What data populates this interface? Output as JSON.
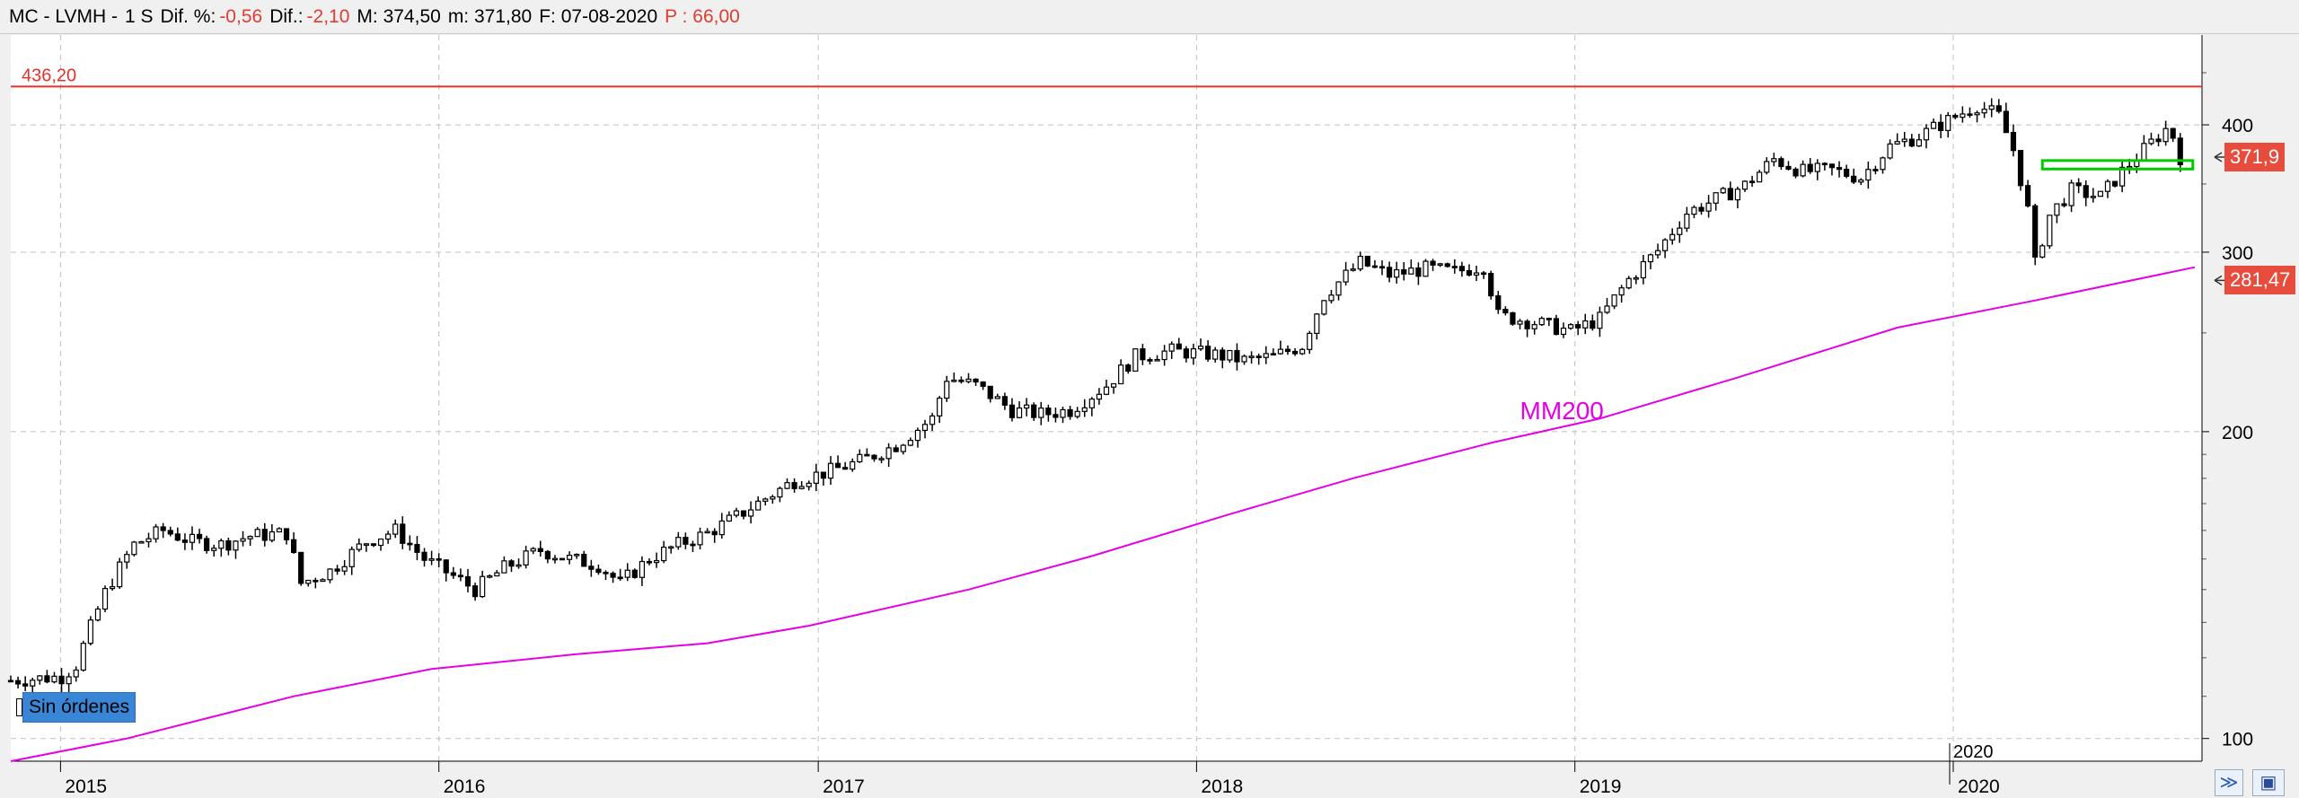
{
  "header": {
    "symbol": "MC - LVMH -",
    "period": "1 S",
    "dif_pct_label": "Dif. %:",
    "dif_pct_value": "-0,56",
    "dif_label": "Dif.:",
    "dif_value": "-2,10",
    "max_label": "M: 374,50",
    "min_label": "m: 371,80",
    "date_label": "F: 07-08-2020",
    "p_label": "P : 66,00"
  },
  "orders_badge": "Sin órdenes",
  "colors": {
    "background": "#ffffff",
    "resistance": "#e8302a",
    "ma200": "#e600e6",
    "support_box": "#00cc00",
    "price_tag": "#e84c3d",
    "candle": "#000000",
    "grid": "#c0c0c0"
  },
  "icons": {
    "collapse": "double-chevron-icon",
    "save": "floppy-disk-icon"
  },
  "chart_data": {
    "type": "candlestick",
    "scale": "log",
    "ylim": [
      95,
      490
    ],
    "yticks": [
      100,
      200,
      300,
      400
    ],
    "yticklabels": [
      "100",
      "200",
      "300",
      "400"
    ],
    "xticklabels": [
      "2015",
      "2016",
      "2017",
      "2018",
      "2019",
      "2020"
    ],
    "xlim": [
      "2014-11-14",
      "2020-08-28"
    ],
    "grid": true,
    "hline": {
      "value": 436.2,
      "label": "436,20"
    },
    "ma_label": "MM200",
    "price_tags": [
      {
        "value": 371.9,
        "label": "371,9"
      },
      {
        "value": 281.47,
        "label": "281,47"
      }
    ],
    "support_box": {
      "from": "2020-03-27",
      "to": "2020-08-07",
      "low": 362,
      "high": 369
    },
    "year_marker": "2020",
    "ma200": [
      [
        "2014-11-14",
        95
      ],
      [
        "2015-03-06",
        100
      ],
      [
        "2015-08-14",
        110
      ],
      [
        "2015-12-25",
        117
      ],
      [
        "2016-05-13",
        121
      ],
      [
        "2016-09-16",
        124
      ],
      [
        "2016-12-23",
        129
      ],
      [
        "2017-05-26",
        140
      ],
      [
        "2017-09-22",
        151
      ],
      [
        "2018-02-02",
        166
      ],
      [
        "2018-06-01",
        180
      ],
      [
        "2018-10-12",
        195
      ],
      [
        "2019-01-25",
        206
      ],
      [
        "2019-06-07",
        226
      ],
      [
        "2019-11-08",
        253
      ],
      [
        "2020-03-20",
        269
      ],
      [
        "2020-08-21",
        290
      ]
    ],
    "price": [
      [
        "2014-11-14",
        114
      ],
      [
        "2015-01-02",
        115
      ],
      [
        "2015-01-16",
        118
      ],
      [
        "2015-02-13",
        139
      ],
      [
        "2015-03-13",
        155
      ],
      [
        "2015-04-10",
        160
      ],
      [
        "2015-05-08",
        156
      ],
      [
        "2015-06-05",
        155
      ],
      [
        "2015-07-03",
        158
      ],
      [
        "2015-08-07",
        159
      ],
      [
        "2015-08-21",
        142
      ],
      [
        "2015-09-18",
        146
      ],
      [
        "2015-10-23",
        156
      ],
      [
        "2015-11-20",
        160
      ],
      [
        "2015-12-18",
        150
      ],
      [
        "2016-02-05",
        140
      ],
      [
        "2016-03-04",
        147
      ],
      [
        "2016-04-08",
        153
      ],
      [
        "2016-05-06",
        150
      ],
      [
        "2016-06-03",
        148
      ],
      [
        "2016-06-24",
        142
      ],
      [
        "2016-07-22",
        150
      ],
      [
        "2016-08-19",
        155
      ],
      [
        "2016-09-16",
        159
      ],
      [
        "2016-10-14",
        165
      ],
      [
        "2016-11-11",
        172
      ],
      [
        "2016-12-09",
        179
      ],
      [
        "2017-01-13",
        183
      ],
      [
        "2017-02-10",
        187
      ],
      [
        "2017-03-17",
        194
      ],
      [
        "2017-04-21",
        206
      ],
      [
        "2017-05-05",
        226
      ],
      [
        "2017-06-02",
        222
      ],
      [
        "2017-07-07",
        210
      ],
      [
        "2017-08-04",
        208
      ],
      [
        "2017-09-01",
        210
      ],
      [
        "2017-10-06",
        222
      ],
      [
        "2017-11-03",
        237
      ],
      [
        "2017-12-08",
        240
      ],
      [
        "2018-01-19",
        238
      ],
      [
        "2018-02-16",
        235
      ],
      [
        "2018-03-16",
        237
      ],
      [
        "2018-04-13",
        243
      ],
      [
        "2018-05-04",
        272
      ],
      [
        "2018-06-08",
        293
      ],
      [
        "2018-07-06",
        285
      ],
      [
        "2018-08-10",
        289
      ],
      [
        "2018-09-07",
        287
      ],
      [
        "2018-10-05",
        291
      ],
      [
        "2018-10-19",
        260
      ],
      [
        "2018-11-23",
        256
      ],
      [
        "2018-12-28",
        251
      ],
      [
        "2019-01-25",
        258
      ],
      [
        "2019-02-22",
        282
      ],
      [
        "2019-03-22",
        301
      ],
      [
        "2019-04-19",
        328
      ],
      [
        "2019-05-17",
        338
      ],
      [
        "2019-06-14",
        349
      ],
      [
        "2019-07-12",
        370
      ],
      [
        "2019-08-09",
        360
      ],
      [
        "2019-09-06",
        361
      ],
      [
        "2019-10-04",
        355
      ],
      [
        "2019-11-01",
        381
      ],
      [
        "2019-11-29",
        390
      ],
      [
        "2019-12-27",
        404
      ],
      [
        "2020-01-24",
        418
      ],
      [
        "2020-02-14",
        408
      ],
      [
        "2020-02-28",
        378
      ],
      [
        "2020-03-13",
        330
      ],
      [
        "2020-03-20",
        292
      ],
      [
        "2020-04-03",
        326
      ],
      [
        "2020-04-24",
        345
      ],
      [
        "2020-05-22",
        340
      ],
      [
        "2020-06-12",
        360
      ],
      [
        "2020-07-03",
        378
      ],
      [
        "2020-07-24",
        396
      ],
      [
        "2020-07-31",
        390
      ],
      [
        "2020-08-07",
        371.9
      ]
    ]
  }
}
